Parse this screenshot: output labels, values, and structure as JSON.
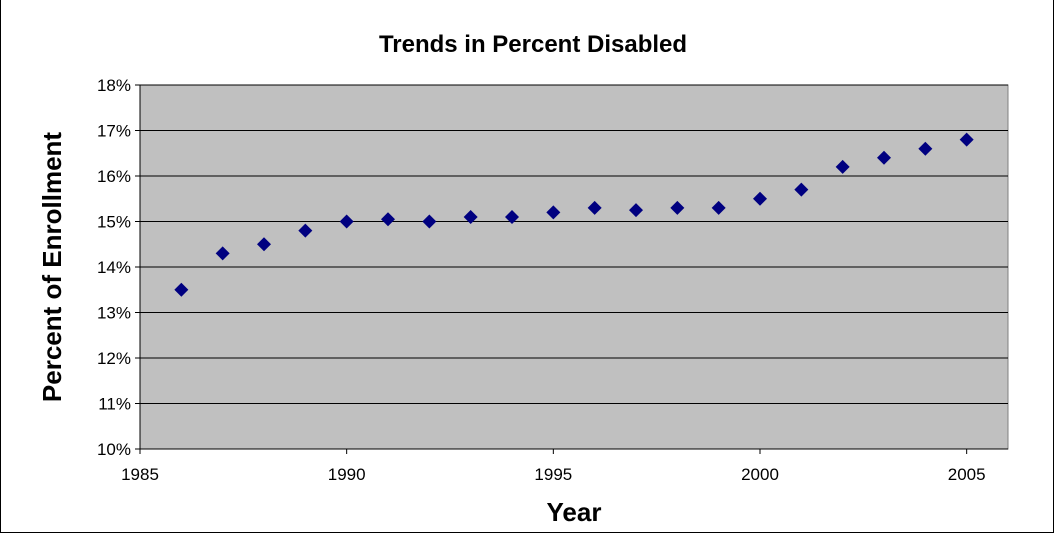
{
  "chart_data": {
    "type": "scatter",
    "title": "Trends in Percent Disabled",
    "xlabel": "Year",
    "ylabel": "Percent of Enrollment",
    "xlim": [
      1985,
      2006
    ],
    "ylim": [
      10,
      18
    ],
    "x_ticks": [
      1985,
      1990,
      1995,
      2000,
      2005
    ],
    "x_tick_labels": [
      "1985",
      "1990",
      "1995",
      "2000",
      "2005"
    ],
    "y_ticks": [
      10,
      11,
      12,
      13,
      14,
      15,
      16,
      17,
      18
    ],
    "y_tick_labels": [
      "10%",
      "11%",
      "12%",
      "13%",
      "14%",
      "15%",
      "16%",
      "17%",
      "18%"
    ],
    "grid": "horizontal",
    "plot_background": "#C0C0C0",
    "marker": "diamond",
    "marker_color": "#000080",
    "series": [
      {
        "x": [
          1986,
          1987,
          1988,
          1989,
          1990,
          1991,
          1992,
          1993,
          1994,
          1995,
          1996,
          1997,
          1998,
          1999,
          2000,
          2001,
          2002,
          2003,
          2004,
          2005
        ],
        "y": [
          13.5,
          14.3,
          14.5,
          14.8,
          15.0,
          15.05,
          15.0,
          15.1,
          15.1,
          15.2,
          15.3,
          15.25,
          15.3,
          15.3,
          15.5,
          15.7,
          16.2,
          16.4,
          16.6,
          16.8
        ]
      }
    ]
  }
}
